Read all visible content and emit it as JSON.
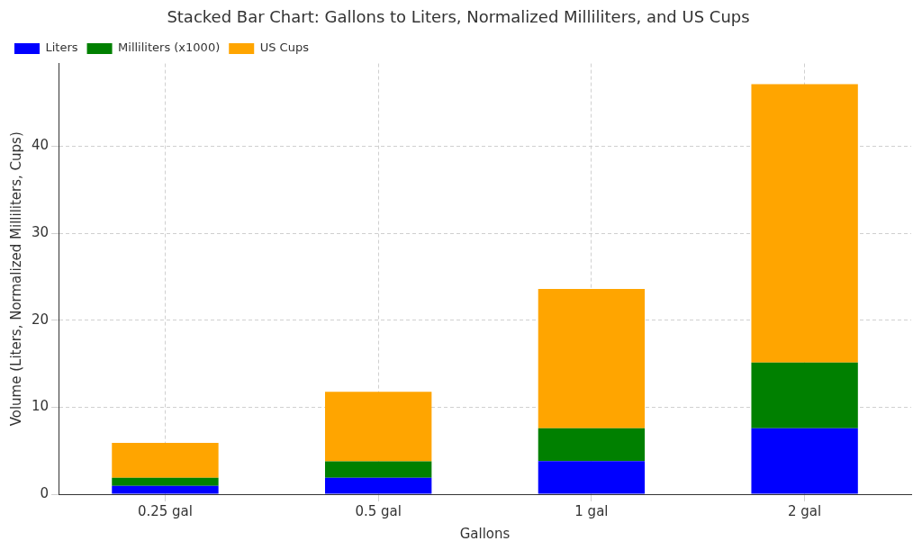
{
  "chart_data": {
    "type": "bar",
    "title": "Stacked Bar Chart: Gallons to Liters, Normalized Milliliters, and US Cups",
    "x_label": "Gallons",
    "y_label": "Volume (Liters, Normalized Milliliters, Cups)",
    "categories": [
      "0.25 gal",
      "0.5 gal",
      "1 gal",
      "2 gal"
    ],
    "series": [
      {
        "name": "Liters",
        "color": "#0000ff",
        "values": [
          0.95,
          1.89,
          3.79,
          7.57
        ]
      },
      {
        "name": "Milliliters (x1000)",
        "color": "#008000",
        "values": [
          0.95,
          1.89,
          3.79,
          7.57
        ]
      },
      {
        "name": "US Cups",
        "color": "#ffa500",
        "values": [
          4,
          8,
          16,
          32
        ]
      }
    ],
    "stacked": true,
    "ylim": [
      0,
      49.5
    ],
    "yticks": [
      0,
      10,
      20,
      30,
      40
    ],
    "grid": true,
    "legend": "upper left"
  }
}
